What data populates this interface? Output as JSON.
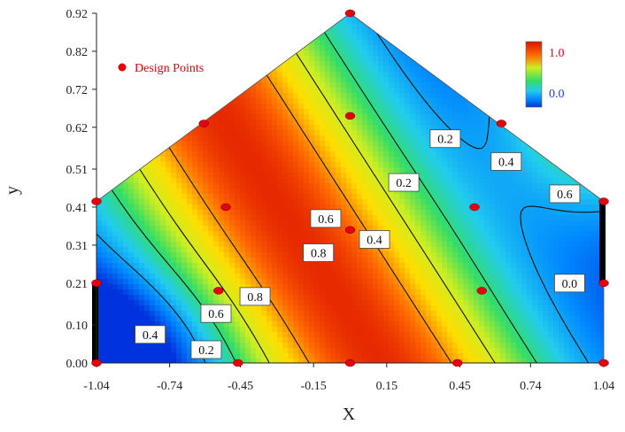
{
  "chart_data": {
    "type": "contour",
    "xlabel": "X",
    "ylabel": "y",
    "xlim": [
      -1.04,
      1.04
    ],
    "ylim": [
      0.0,
      0.92
    ],
    "x_ticks": [
      "-1.04",
      "-0.74",
      "-0.45",
      "-0.15",
      "0.15",
      "0.45",
      "0.74",
      "1.04"
    ],
    "y_ticks": [
      "0.00",
      "0.10",
      "0.21",
      "0.31",
      "0.41",
      "0.51",
      "0.62",
      "0.72",
      "0.82",
      "0.92"
    ],
    "region_polygon": [
      [
        -1.04,
        0.0
      ],
      [
        1.04,
        0.0
      ],
      [
        1.04,
        0.425
      ],
      [
        0.0,
        0.92
      ],
      [
        -1.04,
        0.425
      ]
    ],
    "legend": {
      "label": "Design Points",
      "position": "top-left",
      "marker_color": "#e3000f"
    },
    "colorbar": {
      "min": 0.0,
      "max": 1.0,
      "min_label": "0.0",
      "max_label": "1.0",
      "position": "top-right"
    },
    "colorscale": [
      "#0033dd",
      "#0088ff",
      "#22ccee",
      "#33dd66",
      "#ccee22",
      "#ffdd00",
      "#ff6600",
      "#dd1100"
    ],
    "design_points": [
      {
        "x": -1.04,
        "y": 0.0
      },
      {
        "x": -0.46,
        "y": 0.0
      },
      {
        "x": 0.0,
        "y": 0.0
      },
      {
        "x": 0.44,
        "y": 0.0
      },
      {
        "x": 1.04,
        "y": 0.0
      },
      {
        "x": -1.04,
        "y": 0.21
      },
      {
        "x": -0.54,
        "y": 0.19
      },
      {
        "x": 0.54,
        "y": 0.19
      },
      {
        "x": 1.04,
        "y": 0.21
      },
      {
        "x": -1.04,
        "y": 0.425
      },
      {
        "x": -0.51,
        "y": 0.41
      },
      {
        "x": 0.51,
        "y": 0.41
      },
      {
        "x": 1.04,
        "y": 0.425
      },
      {
        "x": 0.0,
        "y": 0.35
      },
      {
        "x": -0.6,
        "y": 0.63
      },
      {
        "x": 0.0,
        "y": 0.65
      },
      {
        "x": 0.62,
        "y": 0.63
      },
      {
        "x": 0.0,
        "y": 0.92
      }
    ],
    "contour_labels": [
      {
        "text": "0.2",
        "x": -0.59,
        "y": 0.035
      },
      {
        "text": "0.4",
        "x": -0.82,
        "y": 0.075
      },
      {
        "text": "0.6",
        "x": -0.55,
        "y": 0.13
      },
      {
        "text": "0.8",
        "x": -0.39,
        "y": 0.175
      },
      {
        "text": "0.8",
        "x": -0.13,
        "y": 0.29
      },
      {
        "text": "0.6",
        "x": -0.1,
        "y": 0.38
      },
      {
        "text": "0.4",
        "x": 0.1,
        "y": 0.325
      },
      {
        "text": "0.2",
        "x": 0.22,
        "y": 0.475
      },
      {
        "text": "0.2",
        "x": 0.39,
        "y": 0.59
      },
      {
        "text": "0.4",
        "x": 0.64,
        "y": 0.53
      },
      {
        "text": "0.6",
        "x": 0.88,
        "y": 0.445
      },
      {
        "text": "0.0",
        "x": 0.9,
        "y": 0.21
      }
    ]
  }
}
